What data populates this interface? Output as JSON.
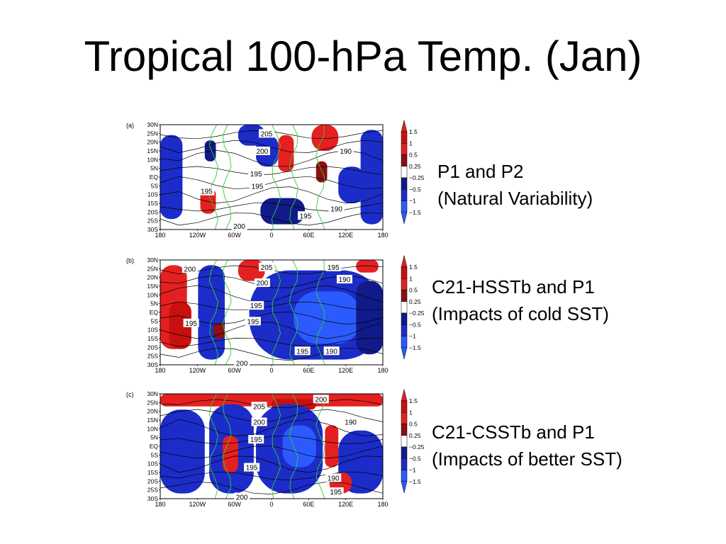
{
  "slide": {
    "title": "Tropical 100-hPa Temp. (Jan)"
  },
  "colors": {
    "warm_strong": "#c81010",
    "warm_mid": "#e42020",
    "warm_dark": "#8c1010",
    "cool_dark": "#101a8a",
    "cool_mid": "#1c2cc8",
    "cool_strong": "#2b5bff",
    "coast": "#33cc33",
    "contour": "#000000"
  },
  "chart_data": [
    {
      "type": "heatmap",
      "panel_label": "(a)",
      "caption": [
        "P1 and P2",
        "(Natural Variability)"
      ],
      "x_ticks": [
        "180",
        "120W",
        "60W",
        "0",
        "60E",
        "120E",
        "180"
      ],
      "y_ticks": [
        "30N",
        "25N",
        "20N",
        "15N",
        "10N",
        "5N",
        "EQ",
        "5S",
        "10S",
        "15S",
        "20S",
        "25S",
        "30S"
      ],
      "xlim": [
        -180,
        180
      ],
      "ylim": [
        -30,
        30
      ],
      "contour_labels": [
        {
          "text": "205",
          "lon": -8,
          "lat": 25
        },
        {
          "text": "200",
          "lon": -15,
          "lat": 15
        },
        {
          "text": "190",
          "lon": 120,
          "lat": 15
        },
        {
          "text": "195",
          "lon": -25,
          "lat": 2
        },
        {
          "text": "195",
          "lon": -23,
          "lat": -5
        },
        {
          "text": "195",
          "lon": -105,
          "lat": -8
        },
        {
          "text": "190",
          "lon": 105,
          "lat": -18
        },
        {
          "text": "195",
          "lon": 55,
          "lat": -22
        },
        {
          "text": "200",
          "lon": -52,
          "lat": -28
        }
      ],
      "legend": {
        "ticks": [
          "1.5",
          "1",
          "0.5",
          "0.25",
          "−0.25",
          "−0.5",
          "−1",
          "−1.5"
        ]
      }
    },
    {
      "type": "heatmap",
      "panel_label": "(b)",
      "caption": [
        "C21-HSSTb and P1",
        "(Impacts of cold SST)"
      ],
      "x_ticks": [
        "180",
        "120W",
        "60W",
        "0",
        "60E",
        "120E",
        "180"
      ],
      "y_ticks": [
        "30N",
        "25N",
        "20N",
        "15N",
        "10N",
        "5N",
        "EQ",
        "5S",
        "10S",
        "15S",
        "20S",
        "25S",
        "30S"
      ],
      "xlim": [
        -180,
        180
      ],
      "ylim": [
        -30,
        30
      ],
      "contour_labels": [
        {
          "text": "200",
          "lon": -132,
          "lat": 25
        },
        {
          "text": "205",
          "lon": -8,
          "lat": 26
        },
        {
          "text": "195",
          "lon": 100,
          "lat": 26
        },
        {
          "text": "200",
          "lon": -15,
          "lat": 17
        },
        {
          "text": "190",
          "lon": 118,
          "lat": 19
        },
        {
          "text": "195",
          "lon": -25,
          "lat": 4
        },
        {
          "text": "195",
          "lon": -130,
          "lat": -6
        },
        {
          "text": "195",
          "lon": -30,
          "lat": -5
        },
        {
          "text": "195",
          "lon": 50,
          "lat": -22
        },
        {
          "text": "190",
          "lon": 97,
          "lat": -22
        },
        {
          "text": "200",
          "lon": -48,
          "lat": -29
        }
      ],
      "legend": {
        "ticks": [
          "1.5",
          "1",
          "0.5",
          "0.25",
          "−0.25",
          "−0.5",
          "−1",
          "−1.5"
        ]
      }
    },
    {
      "type": "heatmap",
      "panel_label": "(c)",
      "caption": [
        "C21-CSSTb and P1",
        "(Impacts of better SST)"
      ],
      "x_ticks": [
        "180",
        "120W",
        "60W",
        "0",
        "60E",
        "120E",
        "180"
      ],
      "y_ticks": [
        "30N",
        "25N",
        "20N",
        "15N",
        "10N",
        "5N",
        "EQ",
        "5S",
        "10S",
        "15S",
        "20S",
        "25S",
        "30S"
      ],
      "xlim": [
        -180,
        180
      ],
      "ylim": [
        -30,
        30
      ],
      "contour_labels": [
        {
          "text": "200",
          "lon": 80,
          "lat": 27
        },
        {
          "text": "205",
          "lon": -20,
          "lat": 23
        },
        {
          "text": "200",
          "lon": -20,
          "lat": 14
        },
        {
          "text": "190",
          "lon": 128,
          "lat": 14
        },
        {
          "text": "195",
          "lon": -25,
          "lat": 4
        },
        {
          "text": "195",
          "lon": -32,
          "lat": -12
        },
        {
          "text": "190",
          "lon": 100,
          "lat": -18
        },
        {
          "text": "195",
          "lon": 104,
          "lat": -26
        },
        {
          "text": "200",
          "lon": -48,
          "lat": -29
        }
      ],
      "legend": {
        "ticks": [
          "1.5",
          "1",
          "0.5",
          "0.25",
          "−0.25",
          "−0.5",
          "−1",
          "−1.5"
        ]
      }
    }
  ]
}
